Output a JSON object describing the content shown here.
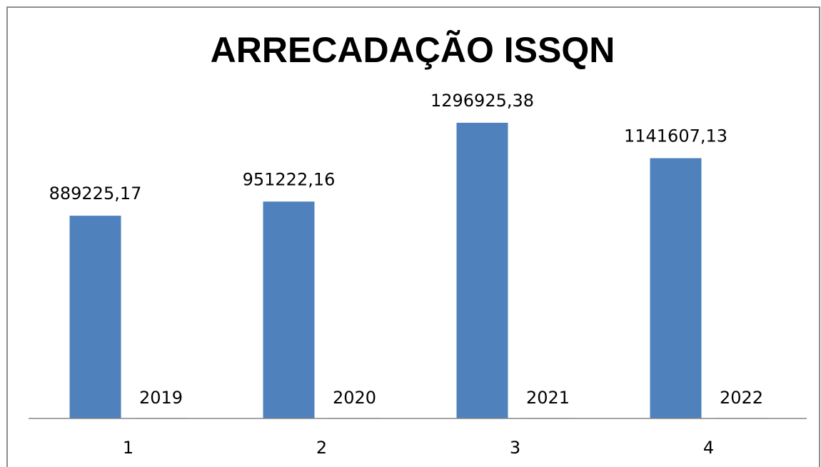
{
  "chart_data": {
    "type": "bar",
    "title": "ARRECADAÇÃO ISSQN",
    "categories": [
      "1",
      "2",
      "3",
      "4"
    ],
    "series": [
      {
        "color": "#4f81bd",
        "values": [
          889225.17,
          951222.16,
          1296925.38,
          1141607.13
        ],
        "value_labels": [
          "889225,17",
          "951222,16",
          "1296925,38",
          "1141607,13"
        ]
      },
      {
        "color": "#c0504d",
        "values": [
          2019,
          2020,
          2021,
          2022
        ]
      }
    ],
    "ylim": [
      0,
      1400000
    ]
  }
}
